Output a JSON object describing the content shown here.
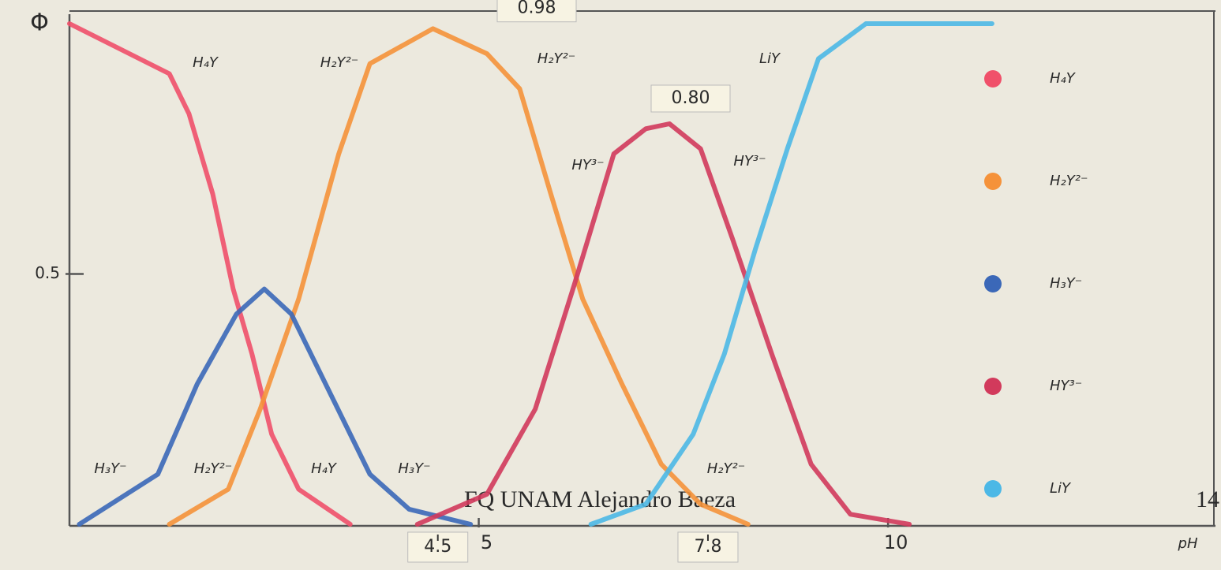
{
  "chart_data": {
    "type": "line",
    "y_label": "Φ",
    "x_label": "pH",
    "xlim": [
      0,
      14
    ],
    "ylim": [
      0,
      1
    ],
    "xticks": [
      5,
      10
    ],
    "yticks": [
      0.5
    ],
    "series": [
      {
        "name": "H₄Y",
        "color": "#f0506a",
        "x": [
          0,
          1.22,
          1.46,
          1.75,
          2.0,
          2.23,
          2.47,
          2.8,
          3.43
        ],
        "values": [
          1.0,
          0.9,
          0.82,
          0.66,
          0.47,
          0.34,
          0.18,
          0.07,
          0
        ]
      },
      {
        "name": "H₂Y²⁻",
        "color": "#f5923a",
        "x": [
          1.22,
          1.94,
          2.33,
          2.8,
          3.29,
          3.67,
          4.44,
          5.1,
          5.5,
          5.88,
          6.27,
          6.75,
          7.23,
          7.71,
          8.29
        ],
        "values": [
          0,
          0.07,
          0.23,
          0.45,
          0.74,
          0.92,
          0.99,
          0.94,
          0.87,
          0.66,
          0.45,
          0.28,
          0.12,
          0.04,
          0
        ]
      },
      {
        "name": "H₃Y⁻",
        "color": "#3b68b8",
        "x": [
          0.12,
          1.08,
          1.56,
          2.04,
          2.38,
          2.71,
          3.19,
          3.67,
          4.15,
          4.9
        ],
        "values": [
          0,
          0.1,
          0.28,
          0.42,
          0.47,
          0.42,
          0.26,
          0.1,
          0.03,
          0
        ]
      },
      {
        "name": "HY³⁻",
        "color": "#d23a5c",
        "x": [
          4.25,
          5.1,
          5.69,
          6.17,
          6.65,
          7.04,
          7.33,
          7.71,
          8.1,
          8.58,
          9.06,
          9.54,
          10.26
        ],
        "values": [
          0,
          0.06,
          0.23,
          0.48,
          0.74,
          0.79,
          0.8,
          0.75,
          0.57,
          0.34,
          0.12,
          0.02,
          0
        ]
      },
      {
        "name": "LiY",
        "color": "#4cb8e6",
        "x": [
          6.37,
          7.04,
          7.62,
          8.0,
          8.38,
          8.77,
          9.15,
          9.73,
          11.27
        ],
        "values": [
          0,
          0.04,
          0.18,
          0.34,
          0.55,
          0.75,
          0.93,
          1.0,
          1.0
        ]
      }
    ],
    "peak_labels": [
      0.98,
      {
        "value": 0.8,
        "label": "0.80"
      }
    ],
    "x_markers": [
      4.5,
      7.8
    ],
    "annotations": [
      "H₄Y",
      "H₂Y²⁻",
      "H₂Y²⁻",
      "LiY",
      "HY³⁻",
      "HY³⁻",
      "H₃Y⁻",
      "H₂Y²⁻",
      "H₄Y",
      "H₃Y⁻",
      "H₂Y²⁻"
    ],
    "footer": "FQ UNAM Alejandro Baeza",
    "page_number": "14"
  }
}
